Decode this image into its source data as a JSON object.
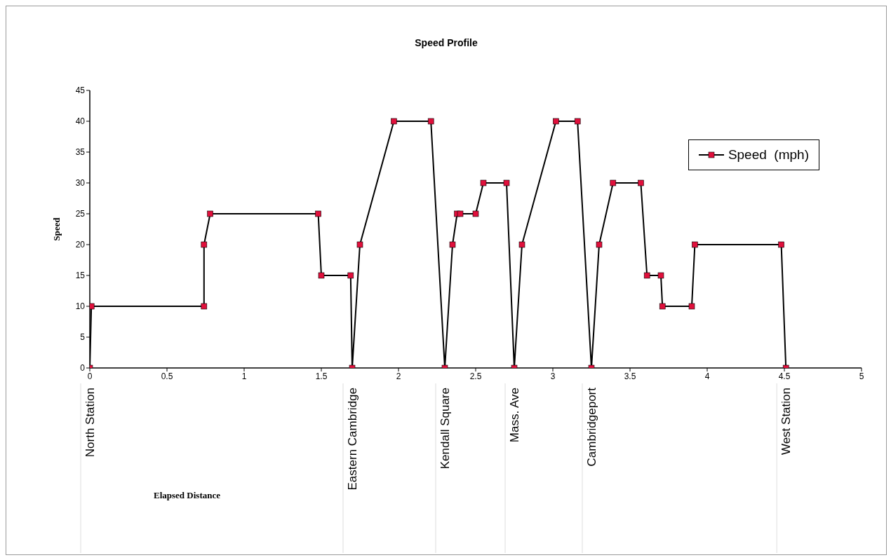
{
  "chart_data": {
    "type": "line",
    "title": "Speed Profile",
    "ylabel": "Speed",
    "series": [
      {
        "name": "Speed  (mph)",
        "color": "#e0103c",
        "x": [
          0,
          0.01,
          0.74,
          0.74,
          0.78,
          1.48,
          1.5,
          1.69,
          1.7,
          1.75,
          1.97,
          2.21,
          2.3,
          2.35,
          2.38,
          2.4,
          2.5,
          2.55,
          2.7,
          2.75,
          2.8,
          3.02,
          3.16,
          3.25,
          3.3,
          3.39,
          3.57,
          3.61,
          3.7,
          3.71,
          3.9,
          3.92,
          4.48,
          4.51
        ],
        "values": [
          0,
          10,
          10,
          20,
          25,
          25,
          15,
          15,
          0,
          20,
          40,
          40,
          0,
          20,
          25,
          25,
          25,
          30,
          30,
          0,
          20,
          40,
          40,
          0,
          20,
          30,
          30,
          15,
          15,
          10,
          10,
          20,
          20,
          0
        ]
      }
    ],
    "xlim": [
      0,
      5
    ],
    "xticks": [
      0,
      0.5,
      1,
      1.5,
      2,
      2.5,
      3,
      3.5,
      4,
      4.5,
      5
    ],
    "ylim": [
      0,
      45
    ],
    "yticks": [
      0,
      5,
      10,
      15,
      20,
      25,
      30,
      35,
      40,
      45
    ],
    "annotations": [
      "Elapsed Distance",
      {
        "text": "North Station",
        "x": 0,
        "y": 0
      },
      {
        "text": "Eastern Cambridge",
        "x": 1.7,
        "y": 0
      },
      {
        "text": "Kendall Square",
        "x": 2.3,
        "y": 0
      },
      {
        "text": "Mass. Ave",
        "x": 2.75,
        "y": 0
      },
      {
        "text": "Cambridgeport",
        "x": 3.25,
        "y": 0
      },
      {
        "text": "West Station",
        "x": 4.51,
        "y": 0
      }
    ],
    "grid": false,
    "legend": "top right",
    "marker": "square",
    "line_style": "solid"
  }
}
